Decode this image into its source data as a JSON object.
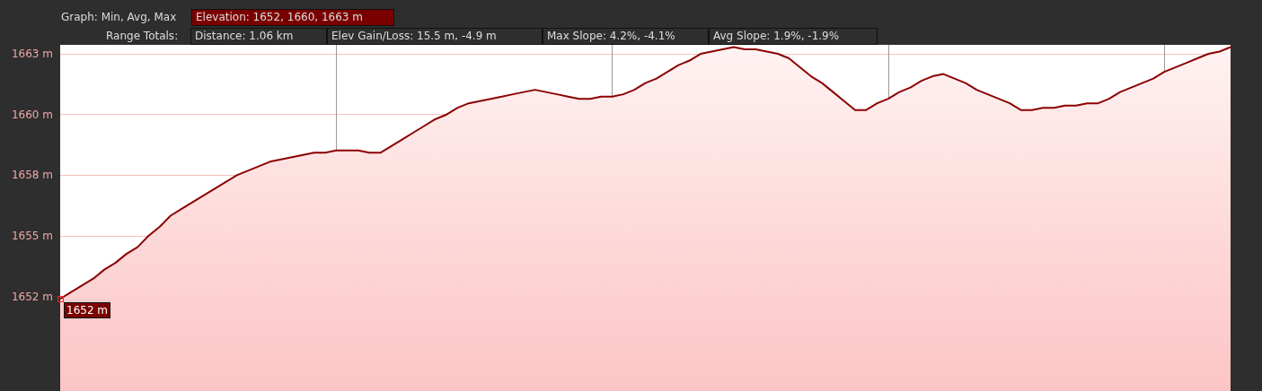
{
  "chart_data": {
    "type": "area",
    "title": "Graph: Min, Avg, Max",
    "subtitle": "Range Totals:",
    "annotations": [
      "Elevation: 1652, 1660, 1663 m",
      "Distance: 1.06 km",
      "Elev Gain/Loss: 15.5 m, -4.9 m",
      "Max Slope: 4.2%, -4.1%",
      "Avg Slope: 1.9%, -1.9%",
      "1652 m"
    ],
    "categories": [
      null,
      null,
      null,
      null,
      null,
      null,
      null,
      null,
      null,
      null,
      null,
      null,
      null,
      null,
      null,
      null,
      null,
      null,
      null,
      null,
      null,
      null,
      null,
      null,
      null,
      null,
      null,
      null,
      null,
      null,
      null,
      null,
      null,
      null,
      null,
      null,
      null,
      null,
      null,
      null,
      null,
      null,
      null,
      null,
      null,
      null,
      null,
      null,
      null,
      null,
      null,
      null,
      null,
      null,
      null,
      null,
      null,
      null,
      null,
      null,
      null,
      null,
      null,
      null,
      null,
      null,
      null,
      null,
      null,
      null,
      null,
      null,
      null,
      null,
      null,
      null,
      null,
      null,
      null,
      null,
      null,
      null,
      null,
      null,
      null,
      null,
      null,
      null,
      null,
      null,
      null,
      null,
      null,
      null,
      null,
      null,
      null,
      null,
      null,
      null,
      null,
      null,
      null,
      null,
      null,
      null,
      null
    ],
    "series": [
      {
        "color": "#8b0000",
        "values": [
          1652.1,
          1652.4,
          1652.7,
          1653.0,
          1653.4,
          1653.7,
          1654.1,
          1654.4,
          1654.9,
          1655.3,
          1655.8,
          1656.1,
          1656.4,
          1656.7,
          1657.0,
          1657.3,
          1657.6,
          1657.8,
          1658.0,
          1658.2,
          1658.3,
          1658.4,
          1658.5,
          1658.6,
          1658.6,
          1658.7,
          1658.7,
          1658.7,
          1658.6,
          1658.6,
          1658.9,
          1659.2,
          1659.5,
          1659.8,
          1660.1,
          1660.3,
          1660.6,
          1660.8,
          1660.9,
          1661.0,
          1661.1,
          1661.2,
          1661.3,
          1661.4,
          1661.3,
          1661.2,
          1661.1,
          1661.0,
          1661.0,
          1661.1,
          1661.1,
          1661.2,
          1661.4,
          1661.7,
          1661.9,
          1662.2,
          1662.5,
          1662.7,
          1663.0,
          1663.1,
          1663.2,
          1663.3,
          1663.2,
          1663.2,
          1663.1,
          1663.0,
          1662.8,
          1662.4,
          1662.0,
          1661.7,
          1661.3,
          1660.9,
          1660.5,
          1660.5,
          1660.8,
          1661.0,
          1661.3,
          1661.5,
          1661.8,
          1662.0,
          1662.1,
          1661.9,
          1661.7,
          1661.4,
          1661.2,
          1661.0,
          1660.8,
          1660.5,
          1660.5,
          1660.6,
          1660.6,
          1660.7,
          1660.7,
          1660.8,
          1660.8,
          1661.0,
          1661.3,
          1661.5,
          1661.7,
          1661.9,
          1662.2,
          1662.4,
          1662.6,
          1662.8,
          1663.0,
          1663.1,
          1663.3
        ]
      }
    ],
    "ylim": [
      1648.0,
      1663.4
    ],
    "yticks": [
      {
        "value": 1652.2,
        "label": "1652 m"
      },
      {
        "value": 1654.9,
        "label": "1655 m"
      },
      {
        "value": 1657.6,
        "label": "1658 m"
      },
      {
        "value": 1660.3,
        "label": "1660 m"
      },
      {
        "value": 1663.0,
        "label": "1663 m"
      }
    ],
    "grid": true,
    "tick_labels": "y",
    "marker": "none"
  }
}
